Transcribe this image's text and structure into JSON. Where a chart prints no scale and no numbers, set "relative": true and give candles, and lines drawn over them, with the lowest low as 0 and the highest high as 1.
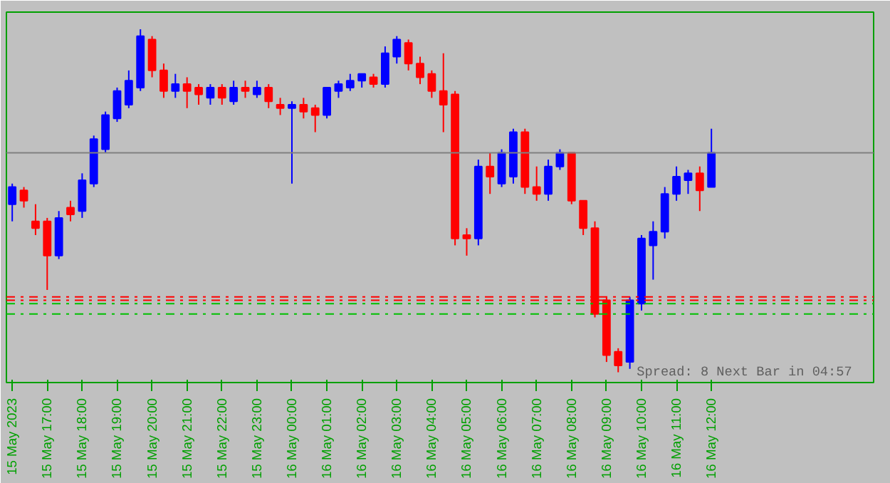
{
  "chart_data": {
    "type": "candlestick",
    "relative": true,
    "categories": [
      "15 May 2023",
      null,
      null,
      "15 May 17:00",
      null,
      null,
      "15 May 18:00",
      null,
      null,
      "15 May 19:00",
      null,
      null,
      "15 May 20:00",
      null,
      null,
      "15 May 21:00",
      null,
      null,
      "15 May 22:00",
      null,
      null,
      "15 May 23:00",
      null,
      null,
      "16 May 00:00",
      null,
      null,
      "16 May 01:00",
      null,
      null,
      "16 May 02:00",
      null,
      null,
      "16 May 03:00",
      null,
      null,
      "16 May 04:00",
      null,
      null,
      "16 May 05:00",
      null,
      null,
      "16 May 06:00",
      null,
      null,
      "16 May 07:00",
      null,
      null,
      "16 May 08:00",
      null,
      null,
      "16 May 09:00",
      null,
      null,
      "16 May 10:00",
      null,
      null,
      "16 May 11:00",
      null,
      null,
      "16 May 12:00"
    ],
    "ohlc": [
      [
        0.49,
        0.55,
        0.44,
        0.54
      ],
      [
        0.53,
        0.54,
        0.48,
        0.5
      ],
      [
        0.44,
        0.49,
        0.4,
        0.42
      ],
      [
        0.44,
        0.45,
        0.24,
        0.34
      ],
      [
        0.34,
        0.47,
        0.33,
        0.45
      ],
      [
        0.48,
        0.5,
        0.44,
        0.46
      ],
      [
        0.47,
        0.58,
        0.45,
        0.56
      ],
      [
        0.55,
        0.69,
        0.54,
        0.68
      ],
      [
        0.65,
        0.76,
        0.64,
        0.75
      ],
      [
        0.74,
        0.83,
        0.73,
        0.82
      ],
      [
        0.78,
        0.88,
        0.77,
        0.85
      ],
      [
        0.83,
        1.0,
        0.82,
        0.98
      ],
      [
        0.97,
        0.98,
        0.86,
        0.88
      ],
      [
        0.88,
        0.9,
        0.8,
        0.82
      ],
      [
        0.82,
        0.87,
        0.8,
        0.84
      ],
      [
        0.84,
        0.86,
        0.77,
        0.82
      ],
      [
        0.83,
        0.84,
        0.78,
        0.81
      ],
      [
        0.8,
        0.84,
        0.78,
        0.83
      ],
      [
        0.83,
        0.84,
        0.78,
        0.8
      ],
      [
        0.79,
        0.85,
        0.78,
        0.83
      ],
      [
        0.83,
        0.85,
        0.8,
        0.82
      ],
      [
        0.81,
        0.85,
        0.8,
        0.83
      ],
      [
        0.83,
        0.84,
        0.77,
        0.79
      ],
      [
        0.78,
        0.8,
        0.75,
        0.77
      ],
      [
        0.77,
        0.79,
        0.55,
        0.78
      ],
      [
        0.78,
        0.8,
        0.74,
        0.76
      ],
      [
        0.77,
        0.78,
        0.7,
        0.75
      ],
      [
        0.75,
        0.83,
        0.74,
        0.83
      ],
      [
        0.82,
        0.85,
        0.8,
        0.84
      ],
      [
        0.83,
        0.87,
        0.82,
        0.85
      ],
      [
        0.85,
        0.87,
        0.83,
        0.87
      ],
      [
        0.86,
        0.87,
        0.83,
        0.84
      ],
      [
        0.84,
        0.95,
        0.83,
        0.93
      ],
      [
        0.92,
        0.98,
        0.9,
        0.97
      ],
      [
        0.96,
        0.97,
        0.88,
        0.9
      ],
      [
        0.9,
        0.92,
        0.84,
        0.86
      ],
      [
        0.87,
        0.88,
        0.8,
        0.82
      ],
      [
        0.82,
        0.93,
        0.7,
        0.78
      ],
      [
        0.81,
        0.82,
        0.37,
        0.39
      ],
      [
        0.4,
        0.42,
        0.34,
        0.39
      ],
      [
        0.39,
        0.62,
        0.37,
        0.6
      ],
      [
        0.6,
        0.64,
        0.52,
        0.57
      ],
      [
        0.55,
        0.65,
        0.54,
        0.64
      ],
      [
        0.57,
        0.71,
        0.55,
        0.7
      ],
      [
        0.7,
        0.71,
        0.52,
        0.54
      ],
      [
        0.54,
        0.6,
        0.5,
        0.52
      ],
      [
        0.52,
        0.62,
        0.5,
        0.6
      ],
      [
        0.6,
        0.65,
        0.59,
        0.64
      ],
      [
        0.64,
        0.64,
        0.49,
        0.5
      ],
      [
        0.5,
        0.5,
        0.4,
        0.42
      ],
      [
        0.42,
        0.44,
        0.16,
        0.17
      ],
      [
        0.21,
        0.22,
        0.03,
        0.05
      ],
      [
        0.06,
        0.07,
        0.0,
        0.02
      ],
      [
        0.03,
        0.22,
        0.01,
        0.21
      ],
      [
        0.2,
        0.4,
        0.18,
        0.39
      ],
      [
        0.37,
        0.44,
        0.27,
        0.41
      ],
      [
        0.41,
        0.54,
        0.39,
        0.52
      ],
      [
        0.52,
        0.6,
        0.5,
        0.57
      ],
      [
        0.56,
        0.59,
        0.52,
        0.58
      ],
      [
        0.58,
        0.6,
        0.47,
        0.53
      ],
      [
        0.54,
        0.71,
        0.54,
        0.64
      ]
    ],
    "ref_lines": [
      {
        "axis": "y",
        "value": 0.64,
        "color": "#808080",
        "line_style": "solid"
      },
      {
        "axis": "y",
        "value": 0.22,
        "color": "#ff0000",
        "line_style": "dashdot"
      },
      {
        "axis": "y",
        "value": 0.21,
        "color": "#ff0000",
        "line_style": "dashdot"
      },
      {
        "axis": "y",
        "value": 0.2,
        "color": "#00c000",
        "line_style": "dashdot"
      },
      {
        "axis": "y",
        "value": 0.17,
        "color": "#00c000",
        "line_style": "dashdot"
      }
    ],
    "annotations": [
      "Spread: 8   Next Bar in 04:57"
    ],
    "grid": false
  }
}
